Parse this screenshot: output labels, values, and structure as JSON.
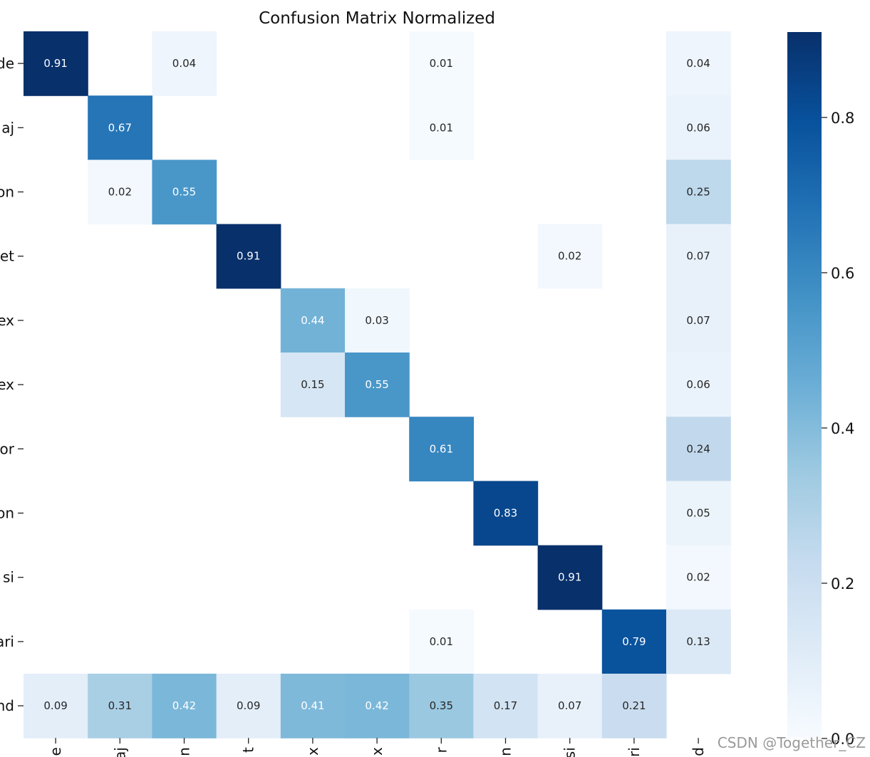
{
  "chart_data": {
    "type": "heatmap",
    "title": "Confusion Matrix Normalized",
    "row_labels": [
      "de",
      "aj",
      "on",
      "et",
      "ex",
      "ex",
      "or",
      "on",
      "si",
      "ari",
      "nd"
    ],
    "col_labels": [
      "e",
      "aj",
      "n",
      "t",
      "x",
      "x",
      "r",
      "n",
      "si",
      "ri",
      "d"
    ],
    "values": [
      [
        0.91,
        null,
        0.04,
        null,
        null,
        null,
        0.01,
        null,
        null,
        null,
        0.04
      ],
      [
        null,
        0.67,
        null,
        null,
        null,
        null,
        0.01,
        null,
        null,
        null,
        0.06
      ],
      [
        null,
        0.02,
        0.55,
        null,
        null,
        null,
        null,
        null,
        null,
        null,
        0.25
      ],
      [
        null,
        null,
        null,
        0.91,
        null,
        null,
        null,
        null,
        0.02,
        null,
        0.07
      ],
      [
        null,
        null,
        null,
        null,
        0.44,
        0.03,
        null,
        null,
        null,
        null,
        0.07
      ],
      [
        null,
        null,
        null,
        null,
        0.15,
        0.55,
        null,
        null,
        null,
        null,
        0.06
      ],
      [
        null,
        null,
        null,
        null,
        null,
        null,
        0.61,
        null,
        null,
        null,
        0.24
      ],
      [
        null,
        null,
        null,
        null,
        null,
        null,
        null,
        0.83,
        null,
        null,
        0.05
      ],
      [
        null,
        null,
        null,
        null,
        null,
        null,
        null,
        null,
        0.91,
        null,
        0.02
      ],
      [
        null,
        null,
        null,
        null,
        null,
        null,
        0.01,
        null,
        null,
        0.79,
        0.13
      ],
      [
        0.09,
        0.31,
        0.42,
        0.09,
        0.41,
        0.42,
        0.35,
        0.17,
        0.07,
        0.21,
        null
      ]
    ],
    "colormap": "Blues",
    "vmin": 0.0,
    "vmax": 0.91,
    "colorbar_ticks": [
      0.0,
      0.2,
      0.4,
      0.6,
      0.8
    ],
    "colorbar_tick_labels": [
      "0.0",
      "0.2",
      "0.4",
      "0.6",
      "0.8"
    ]
  },
  "watermark": "CSDN @Together_CZ"
}
